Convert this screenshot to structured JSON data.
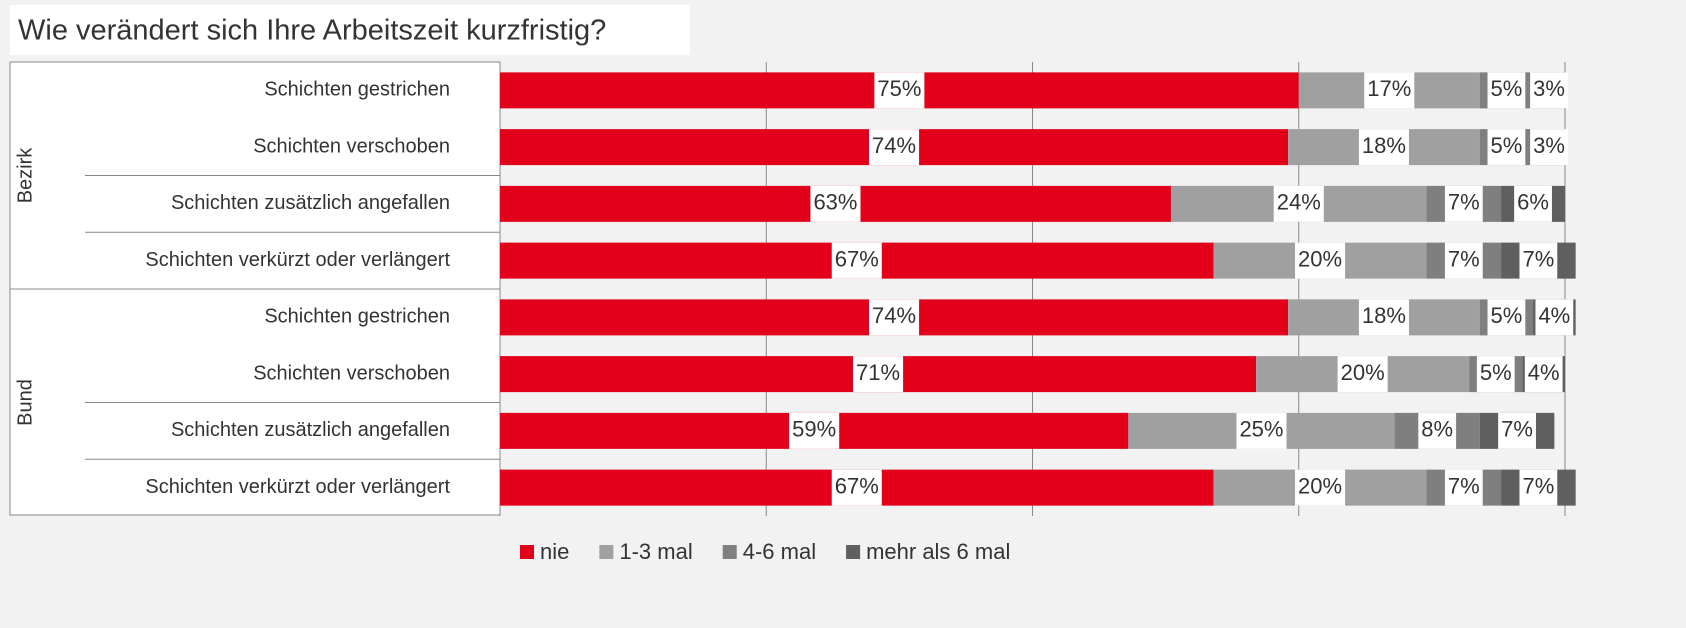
{
  "chart_data": {
    "type": "stacked-bar-horizontal",
    "title": "Wie verändert sich Ihre Arbeitszeit kurzfristig?",
    "groups": [
      {
        "name": "Bezirk",
        "categories": [
          "Schichten gestrichen",
          "Schichten verschoben",
          "Schichten zusätzlich angefallen",
          "Schichten verkürzt oder verlängert"
        ]
      },
      {
        "name": "Bund",
        "categories": [
          "Schichten gestrichen",
          "Schichten verschoben",
          "Schichten zusätzlich angefallen",
          "Schichten verkürzt oder verlängert"
        ]
      }
    ],
    "series": [
      {
        "name": "nie",
        "color": "#e2001a",
        "values": [
          75,
          74,
          63,
          67,
          74,
          71,
          59,
          67
        ],
        "value_labels": [
          "75%",
          "74%",
          "63%",
          "67%",
          "74%",
          "71%",
          "59%",
          "67%"
        ]
      },
      {
        "name": "1-3 mal",
        "color": "#a0a0a0",
        "values": [
          17,
          18,
          24,
          20,
          18,
          20,
          25,
          20
        ],
        "value_labels": [
          "17%",
          "18%",
          "24%",
          "20%",
          "18%",
          "20%",
          "25%",
          "20%"
        ]
      },
      {
        "name": "4-6 mal",
        "color": "#7f7f7f",
        "values": [
          5,
          5,
          7,
          7,
          5,
          5,
          8,
          7
        ],
        "value_labels": [
          "5%",
          "5%",
          "7%",
          "7%",
          "5%",
          "5%",
          "8%",
          "7%"
        ]
      },
      {
        "name": "mehr als 6 mal",
        "color": "#5f5f5f",
        "values": [
          3,
          3,
          6,
          7,
          4,
          4,
          7,
          7
        ],
        "value_labels": [
          "3%",
          "3%",
          "6%",
          "7%",
          "4%",
          "4%",
          "7%",
          "7%"
        ]
      }
    ],
    "xlim": [
      0,
      100
    ],
    "xticks": [
      0,
      25,
      50,
      75,
      100
    ],
    "grid": true,
    "legend": "bottom"
  }
}
